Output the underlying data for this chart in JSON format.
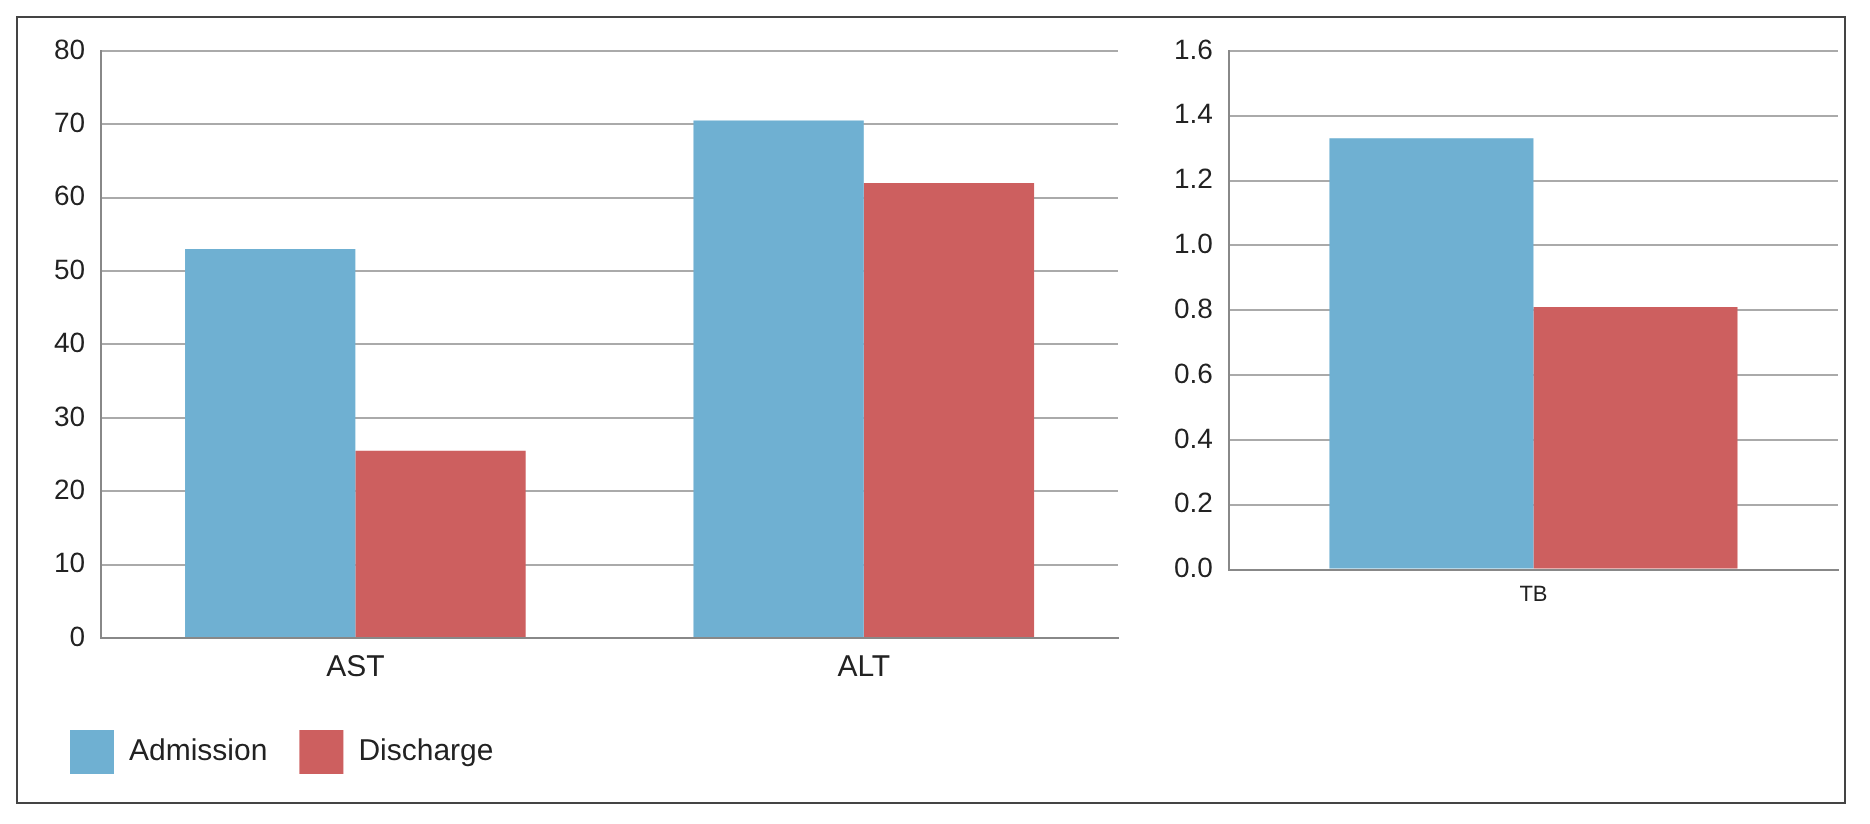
{
  "chart_data": [
    {
      "type": "bar",
      "categories": [
        "AST",
        "ALT"
      ],
      "series": [
        {
          "name": "Admission",
          "color": "#6fb0d2",
          "values": [
            53,
            70.5
          ]
        },
        {
          "name": "Discharge",
          "color": "#cd5f5f",
          "values": [
            25.5,
            62
          ]
        }
      ],
      "ylim": [
        0,
        80
      ],
      "yticks": [
        0,
        10,
        20,
        30,
        40,
        50,
        60,
        70,
        80
      ],
      "grid": "y",
      "legend": "bottom left"
    },
    {
      "type": "bar",
      "categories": [
        "TB"
      ],
      "series": [
        {
          "color": "#6fb0d2",
          "values": [
            1.33
          ]
        },
        {
          "color": "#cd5f5f",
          "values": [
            0.81
          ]
        }
      ],
      "ylim": [
        0,
        1.6
      ],
      "yticks": [
        {
          "value": 0,
          "label": "0.0"
        },
        {
          "value": 0.2,
          "label": "0.2"
        },
        {
          "value": 0.4,
          "label": "0.4"
        },
        {
          "value": 0.6,
          "label": "0.6"
        },
        {
          "value": 0.8,
          "label": "0.8"
        },
        {
          "value": 1,
          "label": "1.0"
        },
        {
          "value": 1.2,
          "label": "1.2"
        },
        {
          "value": 1.4,
          "label": "1.4"
        },
        {
          "value": 1.6,
          "label": "1.6"
        }
      ],
      "grid": "y"
    }
  ]
}
